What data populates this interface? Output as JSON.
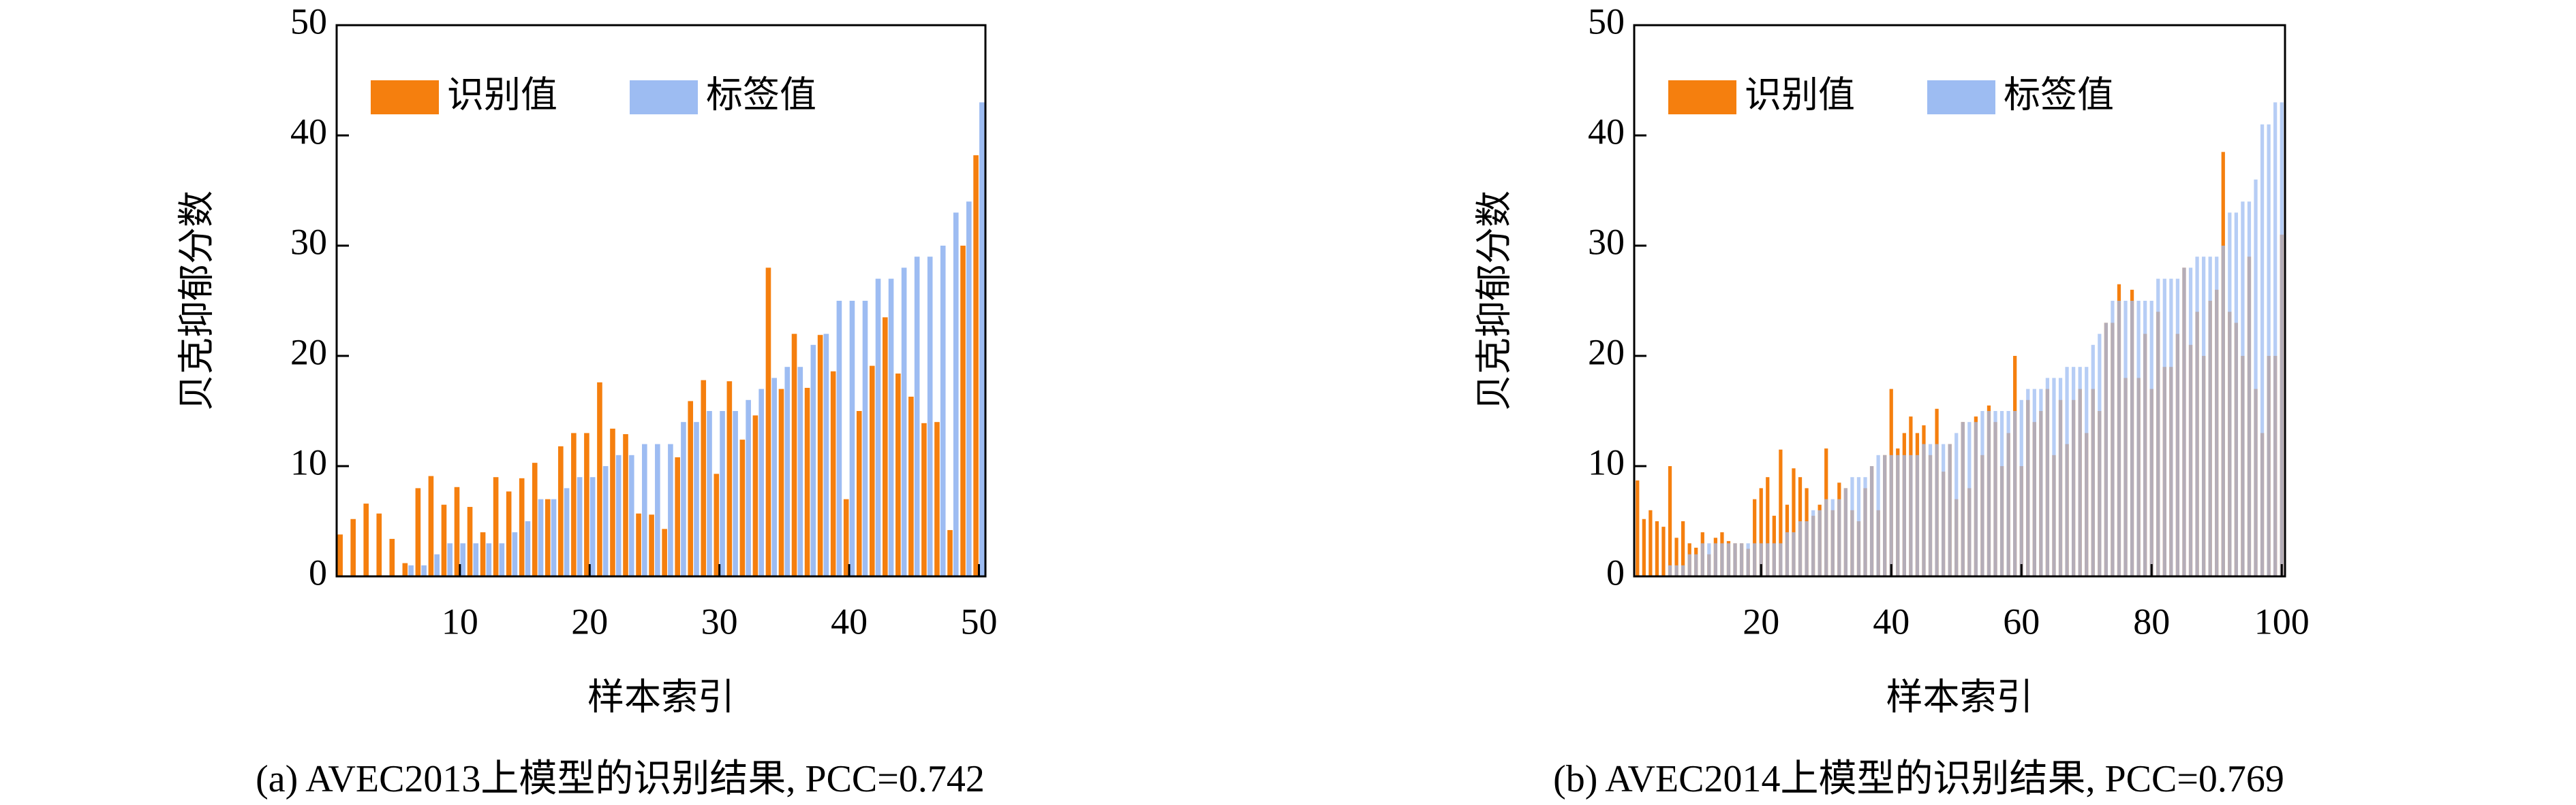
{
  "chart_data": [
    {
      "type": "bar",
      "bar_mode": "grouped",
      "caption": "(a) AVEC2013上模型的识别结果, PCC=0.742",
      "xlabel": "样本索引",
      "ylabel": "贝克抑郁分数",
      "x": [
        1,
        2,
        3,
        4,
        5,
        6,
        7,
        8,
        9,
        10,
        11,
        12,
        13,
        14,
        15,
        16,
        17,
        18,
        19,
        20,
        21,
        22,
        23,
        24,
        25,
        26,
        27,
        28,
        29,
        30,
        31,
        32,
        33,
        34,
        35,
        36,
        37,
        38,
        39,
        40,
        41,
        42,
        43,
        44,
        45,
        46,
        47,
        48,
        49,
        50
      ],
      "xlim": [
        0.5,
        50.5
      ],
      "xticks": [
        10,
        20,
        30,
        40,
        50
      ],
      "ylim": [
        0,
        50
      ],
      "yticks": [
        0,
        10,
        20,
        30,
        40,
        50
      ],
      "legend": "upper left",
      "series": [
        {
          "name": "识别值",
          "color": "#f57f0e",
          "values": [
            3.8,
            5.2,
            6.6,
            5.7,
            3.4,
            1.2,
            8,
            9.1,
            6.5,
            8.1,
            6.3,
            4,
            9,
            7.7,
            8.9,
            10.3,
            7,
            11.8,
            13,
            13,
            17.6,
            13.4,
            12.9,
            5.7,
            5.6,
            4.3,
            10.8,
            15.9,
            17.8,
            9.3,
            17.7,
            12.4,
            14.6,
            28,
            17,
            22,
            17.1,
            21.9,
            18.6,
            7,
            15,
            19.1,
            23.5,
            18.4,
            16.3,
            13.9,
            14,
            4.2,
            30,
            38.2
          ]
        },
        {
          "name": "标签值",
          "color": "#9dbcf2",
          "values": [
            0,
            0,
            0,
            0,
            0,
            1,
            1,
            2,
            3,
            3,
            3,
            3,
            3,
            4,
            5,
            7,
            7,
            8,
            9,
            9,
            10,
            11,
            11,
            12,
            12,
            12,
            14,
            14,
            15,
            15,
            15,
            16,
            17,
            18,
            19,
            19,
            21,
            22,
            25,
            25,
            25,
            27,
            27,
            28,
            29,
            29,
            30,
            33,
            34,
            43
          ]
        }
      ]
    },
    {
      "type": "bar",
      "bar_mode": "overlay",
      "caption": "(b) AVEC2014上模型的识别结果, PCC=0.769",
      "xlabel": "样本索引",
      "ylabel": "贝克抑郁分数",
      "x": [
        1,
        2,
        3,
        4,
        5,
        6,
        7,
        8,
        9,
        10,
        11,
        12,
        13,
        14,
        15,
        16,
        17,
        18,
        19,
        20,
        21,
        22,
        23,
        24,
        25,
        26,
        27,
        28,
        29,
        30,
        31,
        32,
        33,
        34,
        35,
        36,
        37,
        38,
        39,
        40,
        41,
        42,
        43,
        44,
        45,
        46,
        47,
        48,
        49,
        50,
        51,
        52,
        53,
        54,
        55,
        56,
        57,
        58,
        59,
        60,
        61,
        62,
        63,
        64,
        65,
        66,
        67,
        68,
        69,
        70,
        71,
        72,
        73,
        74,
        75,
        76,
        77,
        78,
        79,
        80,
        81,
        82,
        83,
        84,
        85,
        86,
        87,
        88,
        89,
        90,
        91,
        92,
        93,
        94,
        95,
        96,
        97,
        98,
        99,
        100
      ],
      "xlim": [
        0.5,
        100.5
      ],
      "xticks": [
        20,
        40,
        60,
        80,
        100
      ],
      "ylim": [
        0,
        50
      ],
      "yticks": [
        0,
        10,
        20,
        30,
        40,
        50
      ],
      "legend": "upper left",
      "series": [
        {
          "name": "识别值",
          "color": "#f57f0e",
          "values": [
            8.7,
            5.2,
            6,
            5,
            4.5,
            10,
            3.5,
            5,
            3,
            2.6,
            4,
            2,
            3.5,
            4,
            3.2,
            3,
            3,
            2.5,
            7,
            8,
            9,
            5.5,
            11.5,
            6.5,
            9.8,
            9,
            8,
            5.5,
            6.5,
            11.6,
            6,
            8.5,
            8,
            6,
            5,
            8,
            10,
            6,
            11,
            17,
            11.6,
            13,
            14.5,
            13,
            13.7,
            11,
            15.2,
            9.5,
            12,
            7,
            14,
            8,
            14.5,
            11,
            15.5,
            14,
            10,
            13,
            20,
            10,
            16,
            14,
            15,
            17,
            11,
            16,
            12,
            16,
            17,
            13,
            17,
            15,
            23,
            23,
            26.5,
            18,
            26,
            18,
            22,
            17,
            24,
            19,
            19,
            22,
            28,
            21,
            24,
            20,
            25,
            26,
            38.5,
            24,
            23,
            20,
            29,
            17,
            13,
            20,
            20,
            31
          ]
        },
        {
          "name": "标签值",
          "color": "#9dbcf2",
          "values": [
            0,
            0,
            0,
            0,
            0,
            1,
            1,
            1,
            2,
            2,
            3,
            3,
            3,
            3,
            3,
            3,
            3,
            3,
            3,
            3,
            3,
            3,
            3,
            4,
            4,
            5,
            5,
            6,
            6,
            7,
            7,
            7,
            8,
            9,
            9,
            9,
            10,
            11,
            11,
            11,
            11,
            11,
            11,
            11,
            12,
            12,
            12,
            12,
            12,
            13,
            14,
            14,
            14,
            15,
            15,
            15,
            15,
            15,
            15,
            16,
            17,
            17,
            17,
            18,
            18,
            18,
            19,
            19,
            19,
            19,
            21,
            22,
            23,
            25,
            25,
            25,
            25,
            25,
            25,
            25,
            27,
            27,
            27,
            27,
            28,
            28,
            29,
            29,
            29,
            29,
            30,
            33,
            33,
            34,
            34,
            36,
            41,
            41,
            43,
            43
          ]
        }
      ]
    }
  ]
}
